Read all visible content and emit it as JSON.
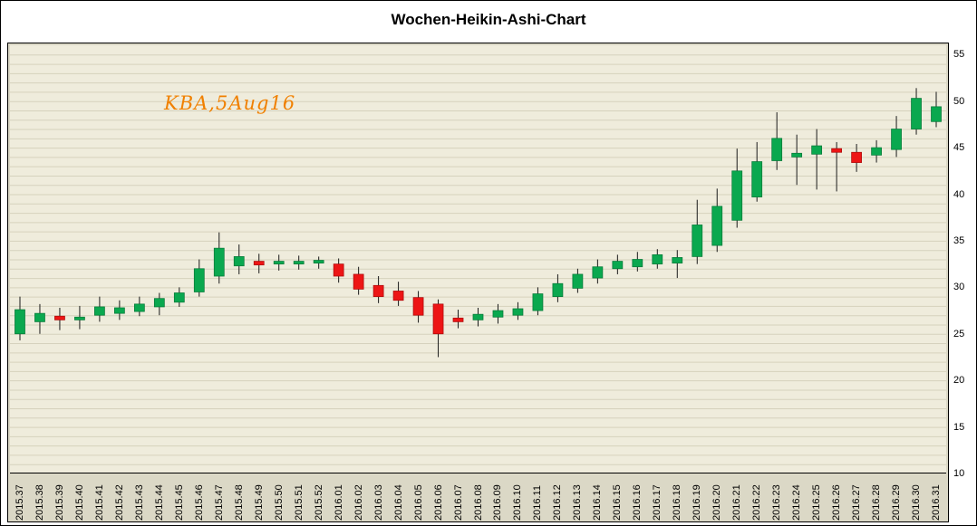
{
  "title": "Wochen-Heikin-Ashi-Chart",
  "annotation": {
    "text": "KBA,5Aug16",
    "color": "#f08000"
  },
  "colors": {
    "up": "#0aa84f",
    "up_border": "#067a38",
    "down": "#ed1515",
    "down_border": "#ad0b0b",
    "wick": "#1a1a1a",
    "plot_bg": "#efecdc",
    "grid": "#d6d2bd",
    "frame_bg": "#dbd8c6",
    "axis": "#000000"
  },
  "chart_data": {
    "type": "candlestick",
    "title": "Wochen-Heikin-Ashi-Chart",
    "subtitle": "KBA,5Aug16",
    "xlabel": "",
    "ylabel": "",
    "ylim": [
      10,
      55
    ],
    "y_ticks": [
      10,
      15,
      20,
      25,
      30,
      35,
      40,
      45,
      50,
      55
    ],
    "grid": "horizontal, every 1 unit",
    "legend": "none",
    "categories": [
      "2015.37",
      "2015.38",
      "2015.39",
      "2015.40",
      "2015.41",
      "2015.42",
      "2015.43",
      "2015.44",
      "2015.45",
      "2015.46",
      "2015.47",
      "2015.48",
      "2015.49",
      "2015.50",
      "2015.51",
      "2015.52",
      "2016.01",
      "2016.02",
      "2016.03",
      "2016.04",
      "2016.05",
      "2016.06",
      "2016.07",
      "2016.08",
      "2016.09",
      "2016.10",
      "2016.11",
      "2016.12",
      "2016.13",
      "2016.14",
      "2016.15",
      "2016.16",
      "2016.17",
      "2016.18",
      "2016.19",
      "2016.20",
      "2016.21",
      "2016.22",
      "2016.23",
      "2016.24",
      "2016.25",
      "2016.26",
      "2016.27",
      "2016.28",
      "2016.29",
      "2016.30",
      "2016.31"
    ],
    "ohlc_order": [
      "open",
      "high",
      "low",
      "close"
    ],
    "candles": [
      [
        25.0,
        29.0,
        24.3,
        27.6
      ],
      [
        26.3,
        28.2,
        25.0,
        27.2
      ],
      [
        26.9,
        27.8,
        25.4,
        26.5
      ],
      [
        26.5,
        28.0,
        25.5,
        26.8
      ],
      [
        27.0,
        29.0,
        26.3,
        27.9
      ],
      [
        27.2,
        28.6,
        26.5,
        27.8
      ],
      [
        27.4,
        29.0,
        26.9,
        28.2
      ],
      [
        27.9,
        29.4,
        27.0,
        28.8
      ],
      [
        28.4,
        30.0,
        27.9,
        29.4
      ],
      [
        29.5,
        33.0,
        29.0,
        32.0
      ],
      [
        31.2,
        35.9,
        30.4,
        34.2
      ],
      [
        32.3,
        34.6,
        31.4,
        33.3
      ],
      [
        32.8,
        33.6,
        31.5,
        32.4
      ],
      [
        32.5,
        33.5,
        31.8,
        32.8
      ],
      [
        32.5,
        33.4,
        31.9,
        32.8
      ],
      [
        32.6,
        33.3,
        32.0,
        32.9
      ],
      [
        32.5,
        33.1,
        30.5,
        31.2
      ],
      [
        31.4,
        32.2,
        29.2,
        29.8
      ],
      [
        30.2,
        31.2,
        28.3,
        29.0
      ],
      [
        29.6,
        30.6,
        28.0,
        28.6
      ],
      [
        28.9,
        29.6,
        26.2,
        27.0
      ],
      [
        28.2,
        28.7,
        22.5,
        25.0
      ],
      [
        26.7,
        27.6,
        25.6,
        26.3
      ],
      [
        26.5,
        27.8,
        25.8,
        27.1
      ],
      [
        26.8,
        28.2,
        26.1,
        27.5
      ],
      [
        27.0,
        28.4,
        26.5,
        27.7
      ],
      [
        27.5,
        30.0,
        27.0,
        29.3
      ],
      [
        29.0,
        31.4,
        28.4,
        30.4
      ],
      [
        29.9,
        32.0,
        29.4,
        31.4
      ],
      [
        31.0,
        33.0,
        30.4,
        32.2
      ],
      [
        32.0,
        33.5,
        31.4,
        32.8
      ],
      [
        32.2,
        33.8,
        31.7,
        33.0
      ],
      [
        32.5,
        34.1,
        32.0,
        33.5
      ],
      [
        32.6,
        34.0,
        31.0,
        33.2
      ],
      [
        33.3,
        39.4,
        32.5,
        36.7
      ],
      [
        34.5,
        40.6,
        33.8,
        38.7
      ],
      [
        37.2,
        44.9,
        36.4,
        42.5
      ],
      [
        39.7,
        45.6,
        39.2,
        43.5
      ],
      [
        43.6,
        48.8,
        42.6,
        46.0
      ],
      [
        44.0,
        46.4,
        41.0,
        44.4
      ],
      [
        44.3,
        47.0,
        40.5,
        45.2
      ],
      [
        44.9,
        45.6,
        40.3,
        44.5
      ],
      [
        44.5,
        45.4,
        42.4,
        43.4
      ],
      [
        44.2,
        45.8,
        43.4,
        45.0
      ],
      [
        44.8,
        48.4,
        44.0,
        47.0
      ],
      [
        47.0,
        51.4,
        46.4,
        50.3
      ],
      [
        47.8,
        51.0,
        47.2,
        49.4
      ]
    ]
  }
}
